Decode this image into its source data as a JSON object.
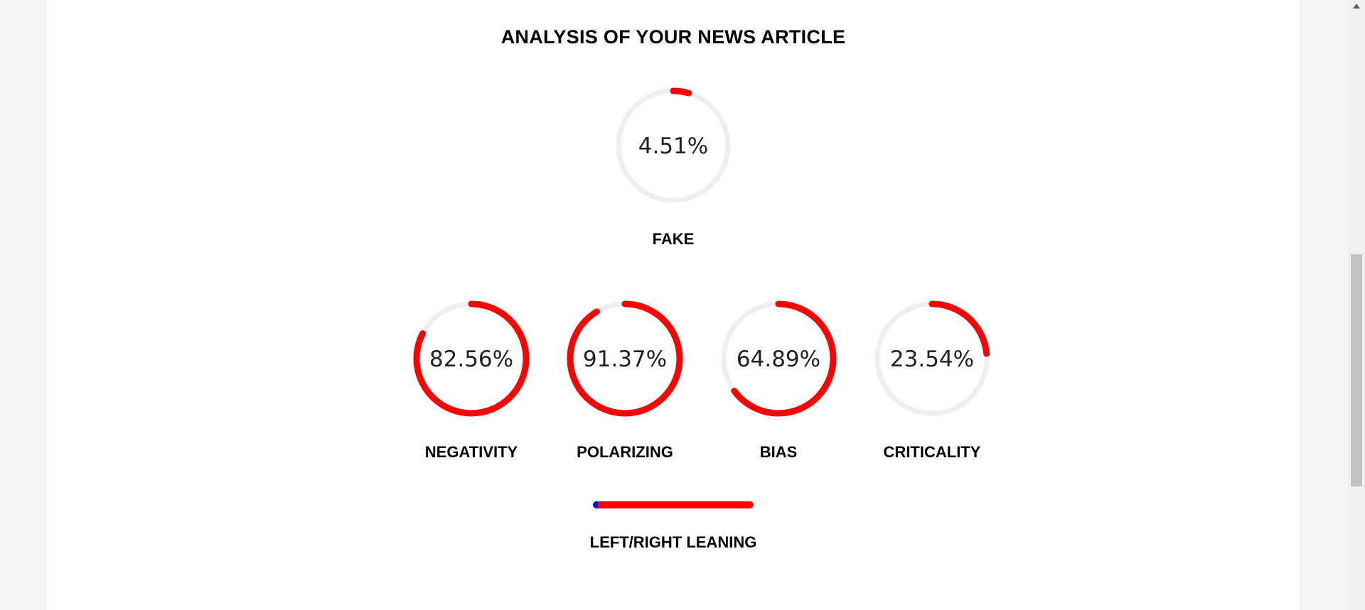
{
  "title": "ANALYSIS OF YOUR NEWS ARTICLE",
  "colors": {
    "accent": "#ff0000",
    "track": "#efefef",
    "left": "#0000ff",
    "right": "#ff0000"
  },
  "gauges": {
    "fake": {
      "label": "FAKE",
      "value_text": "4.51%",
      "value": 4.51
    },
    "negativity": {
      "label": "NEGATIVITY",
      "value_text": "82.56%",
      "value": 82.56
    },
    "polarizing": {
      "label": "POLARIZING",
      "value_text": "91.37%",
      "value": 91.37
    },
    "bias": {
      "label": "BIAS",
      "value_text": "64.89%",
      "value": 64.89
    },
    "criticality": {
      "label": "CRITICALITY",
      "value_text": "23.54%",
      "value": 23.54
    }
  },
  "leaning": {
    "label": "LEFT/RIGHT LEANING",
    "left_fraction": 0.03,
    "right_fraction": 0.97
  }
}
